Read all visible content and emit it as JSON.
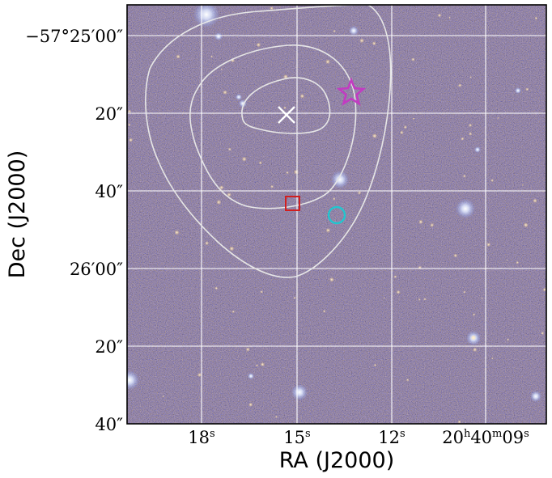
{
  "figure": {
    "xlabel": "RA (J2000)",
    "ylabel": "Dec (J2000)",
    "x_ticks": [
      {
        "label": "18",
        "unit": "s"
      },
      {
        "label": "15",
        "unit": "s"
      },
      {
        "label": "12",
        "unit": "s"
      },
      {
        "label": "20",
        "unit": "h",
        "label2": "40",
        "unit2": "m",
        "label3": "09",
        "unit3": "s"
      }
    ],
    "y_ticks": [
      "−57°25′00″",
      "20″",
      "40″",
      "26′00″",
      "20″",
      "40″"
    ],
    "grid": true,
    "grid_color": "#ffffff",
    "background": "optical sky image, dark with orange/blue noise",
    "markers": [
      {
        "name": "cross-marker",
        "shape": "x",
        "color": "#ffffff"
      },
      {
        "name": "star-marker",
        "shape": "star",
        "color": "#c23bc2"
      },
      {
        "name": "square-marker",
        "shape": "square",
        "color": "#d11f1f"
      },
      {
        "name": "circle-marker",
        "shape": "circle",
        "color": "#22c6cf"
      }
    ],
    "contours": {
      "count": 3,
      "color": "#e6e6e6"
    }
  }
}
